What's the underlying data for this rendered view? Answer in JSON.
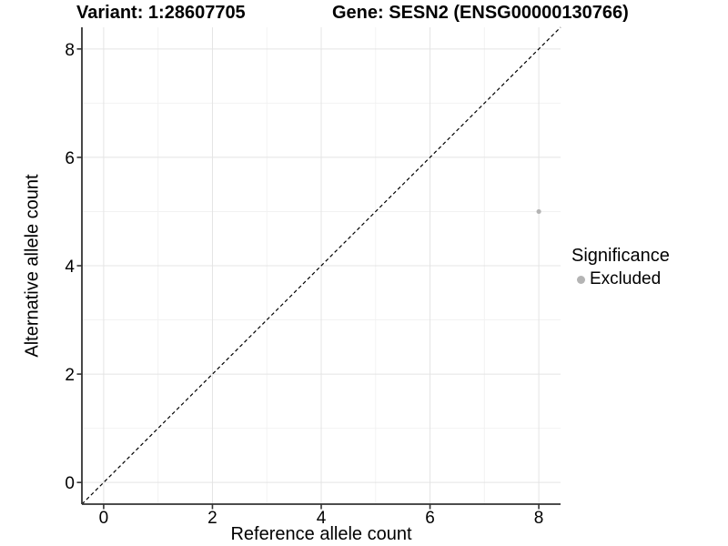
{
  "chart_data": {
    "type": "scatter",
    "titles": {
      "left": "Variant: 1:28607705",
      "right": "Gene: SESN2 (ENSG00000130766)"
    },
    "xlabel": "Reference allele count",
    "ylabel": "Alternative allele count",
    "xlim": [
      -0.4,
      8.4
    ],
    "ylim": [
      -0.4,
      8.4
    ],
    "xticks": [
      0,
      2,
      4,
      6,
      8
    ],
    "yticks": [
      0,
      2,
      4,
      6,
      8
    ],
    "minor_gridlines_x": [
      1,
      3,
      5,
      7
    ],
    "minor_gridlines_y": [
      1,
      3,
      5,
      7
    ],
    "grid": "major-and-minor",
    "identity_line": {
      "slope": 1,
      "intercept": 0,
      "style": "dashed",
      "color": "#000000"
    },
    "series": [
      {
        "name": "Excluded",
        "color": "#b4b4b4",
        "points": [
          {
            "x": 8,
            "y": 5
          }
        ]
      }
    ],
    "legend": {
      "title": "Significance",
      "position": "right",
      "items": [
        {
          "label": "Excluded",
          "color": "#b4b4b4"
        }
      ]
    },
    "colors": {
      "grid_major": "#e4e4e4",
      "grid_minor": "#f2f2f2",
      "axis": "#333333",
      "text": "#000000",
      "background": "#ffffff"
    }
  }
}
